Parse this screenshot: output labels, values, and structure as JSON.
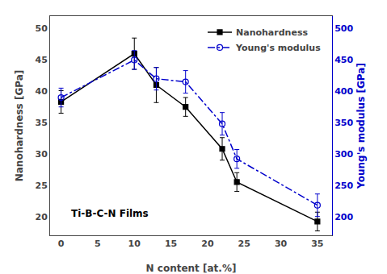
{
  "chart_data": {
    "type": "line",
    "annotation": "Ti-B-C-N Films",
    "xlabel": "N content [at.%]",
    "ylabel": "Nanohardness [GPa]",
    "y2label": "Young's modulus [GPa]",
    "x": [
      0,
      10,
      13,
      17,
      22,
      24,
      35
    ],
    "series": [
      {
        "name": "Nanohardness",
        "color": "#000000",
        "marker": "square",
        "line_style": "solid",
        "values": [
          38.3,
          46.0,
          41.0,
          37.5,
          30.8,
          25.5,
          19.2
        ],
        "errors": [
          1.8,
          2.5,
          2.8,
          1.5,
          1.8,
          1.5,
          1.5
        ]
      },
      {
        "name": "Young's modulus",
        "color": "#0000cc",
        "marker": "circle-open",
        "line_style": "dashdot",
        "axis": "y2",
        "values": [
          390,
          450,
          420,
          415,
          348,
          292,
          218
        ],
        "errors": [
          15,
          15,
          18,
          18,
          18,
          15,
          18
        ]
      }
    ],
    "xlim": [
      -1.5,
      37
    ],
    "xticks": [
      0,
      5,
      10,
      15,
      20,
      25,
      30,
      35
    ],
    "ylim": [
      17,
      52
    ],
    "yticks": [
      20,
      25,
      30,
      35,
      40,
      45,
      50
    ],
    "y2lim": [
      170,
      520
    ],
    "y2ticks": [
      200,
      250,
      300,
      350,
      400,
      450,
      500
    ],
    "grid": false,
    "legend": "upper right"
  }
}
